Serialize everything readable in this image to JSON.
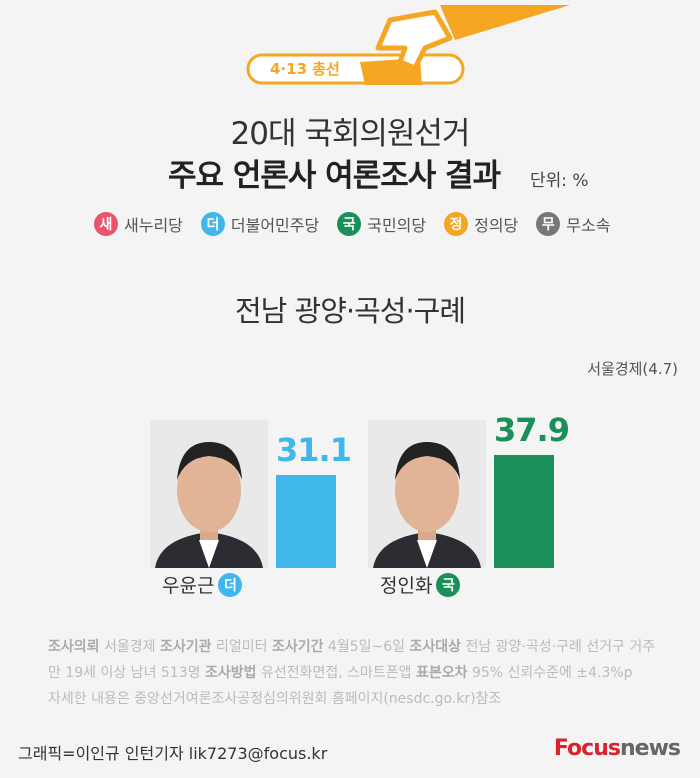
{
  "header": {
    "tag": "4·13 총선",
    "title_line1": "20대 국회의원선거",
    "title_line2": "주요 언론사 여론조사 결과",
    "unit": "단위: %"
  },
  "legend": [
    {
      "badge": "새",
      "label": "새누리당",
      "color": "#e8546a"
    },
    {
      "badge": "더",
      "label": "더불어민주당",
      "color": "#3fb7ea"
    },
    {
      "badge": "국",
      "label": "국민의당",
      "color": "#1a8f5a"
    },
    {
      "badge": "정",
      "label": "정의당",
      "color": "#f5a623"
    },
    {
      "badge": "무",
      "label": "무소속",
      "color": "#777777"
    }
  ],
  "chart_data": {
    "type": "bar",
    "title": "전남 광양·곡성·구례",
    "source": "서울경제(4.7)",
    "categories": [
      "우윤근",
      "정인화"
    ],
    "parties": [
      "더",
      "국"
    ],
    "values": [
      31.1,
      37.9
    ],
    "colors": [
      "#3fb7ea",
      "#1a8f5a"
    ]
  },
  "footer": {
    "line1": [
      [
        "조사의뢰",
        "서울경제"
      ],
      [
        "조사기관",
        "리얼미터"
      ],
      [
        "조사기간",
        "4월5일~6일"
      ],
      [
        "조사대상",
        "전남 광양·곡성·구례 선거구 거주"
      ]
    ],
    "line2_start": "만 19세 이상 남녀 513명",
    "line2": [
      [
        "조사방법",
        "유선전화면접, 스마트폰앱"
      ],
      [
        "표본오차",
        "95% 신뢰수준에 ±4.3%p"
      ]
    ],
    "line3": "자세한 내용은 중앙선거여론조사공정심의위원회 홈페이지(nesdc.go.kr)참조",
    "credit": "그래픽=이인규 인턴기자 lik7273@focus.kr",
    "logo_a": "Focus",
    "logo_b": "news"
  }
}
